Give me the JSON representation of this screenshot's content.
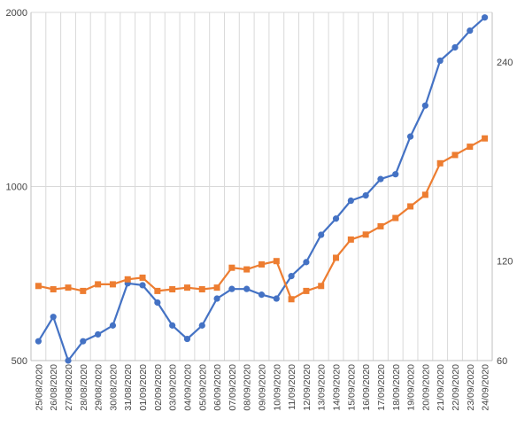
{
  "chart_data": {
    "type": "line",
    "title": "",
    "xlabel": "",
    "grid": true,
    "legend": "none",
    "x": [
      "25/08/2020",
      "26/08/2020",
      "27/08/2020",
      "28/08/2020",
      "29/08/2020",
      "30/08/2020",
      "31/08/2020",
      "01/09/2020",
      "02/09/2020",
      "03/09/2020",
      "04/09/2020",
      "05/09/2020",
      "06/09/2020",
      "07/09/2020",
      "08/09/2020",
      "09/09/2020",
      "10/09/2020",
      "11/09/2020",
      "12/09/2020",
      "13/09/2020",
      "14/09/2020",
      "15/09/2020",
      "16/09/2020",
      "17/09/2020",
      "18/09/2020",
      "19/09/2020",
      "20/09/2020",
      "21/09/2020",
      "22/09/2020",
      "23/09/2020",
      "24/09/2020"
    ],
    "axes": {
      "left": {
        "scale": "log",
        "range": [
          500,
          2000
        ],
        "ticks": [
          500,
          1000,
          2000
        ],
        "tick_labels": [
          "500",
          "1000",
          "2000"
        ]
      },
      "right": {
        "scale": "linear",
        "range": [
          60,
          270
        ],
        "ticks": [
          60,
          120,
          240
        ],
        "tick_labels": [
          "60",
          "120",
          "240"
        ]
      }
    },
    "series": [
      {
        "color": "#4472c4",
        "marker": "circle",
        "axis": "left",
        "values": [
          540,
          595,
          500,
          540,
          555,
          575,
          680,
          675,
          630,
          575,
          545,
          575,
          640,
          665,
          665,
          650,
          640,
          700,
          740,
          825,
          880,
          945,
          965,
          1030,
          1050,
          1220,
          1380,
          1650,
          1740,
          1860,
          1960
        ]
      },
      {
        "color": "#ed7d31",
        "marker": "square",
        "axis": "right",
        "values": [
          105,
          103,
          104,
          102,
          106,
          106,
          109,
          110,
          102,
          103,
          104,
          103,
          104,
          116,
          115,
          118,
          120,
          97,
          102,
          105,
          122,
          133,
          136,
          141,
          146,
          153,
          160,
          179,
          184,
          189,
          194
        ]
      }
    ]
  }
}
